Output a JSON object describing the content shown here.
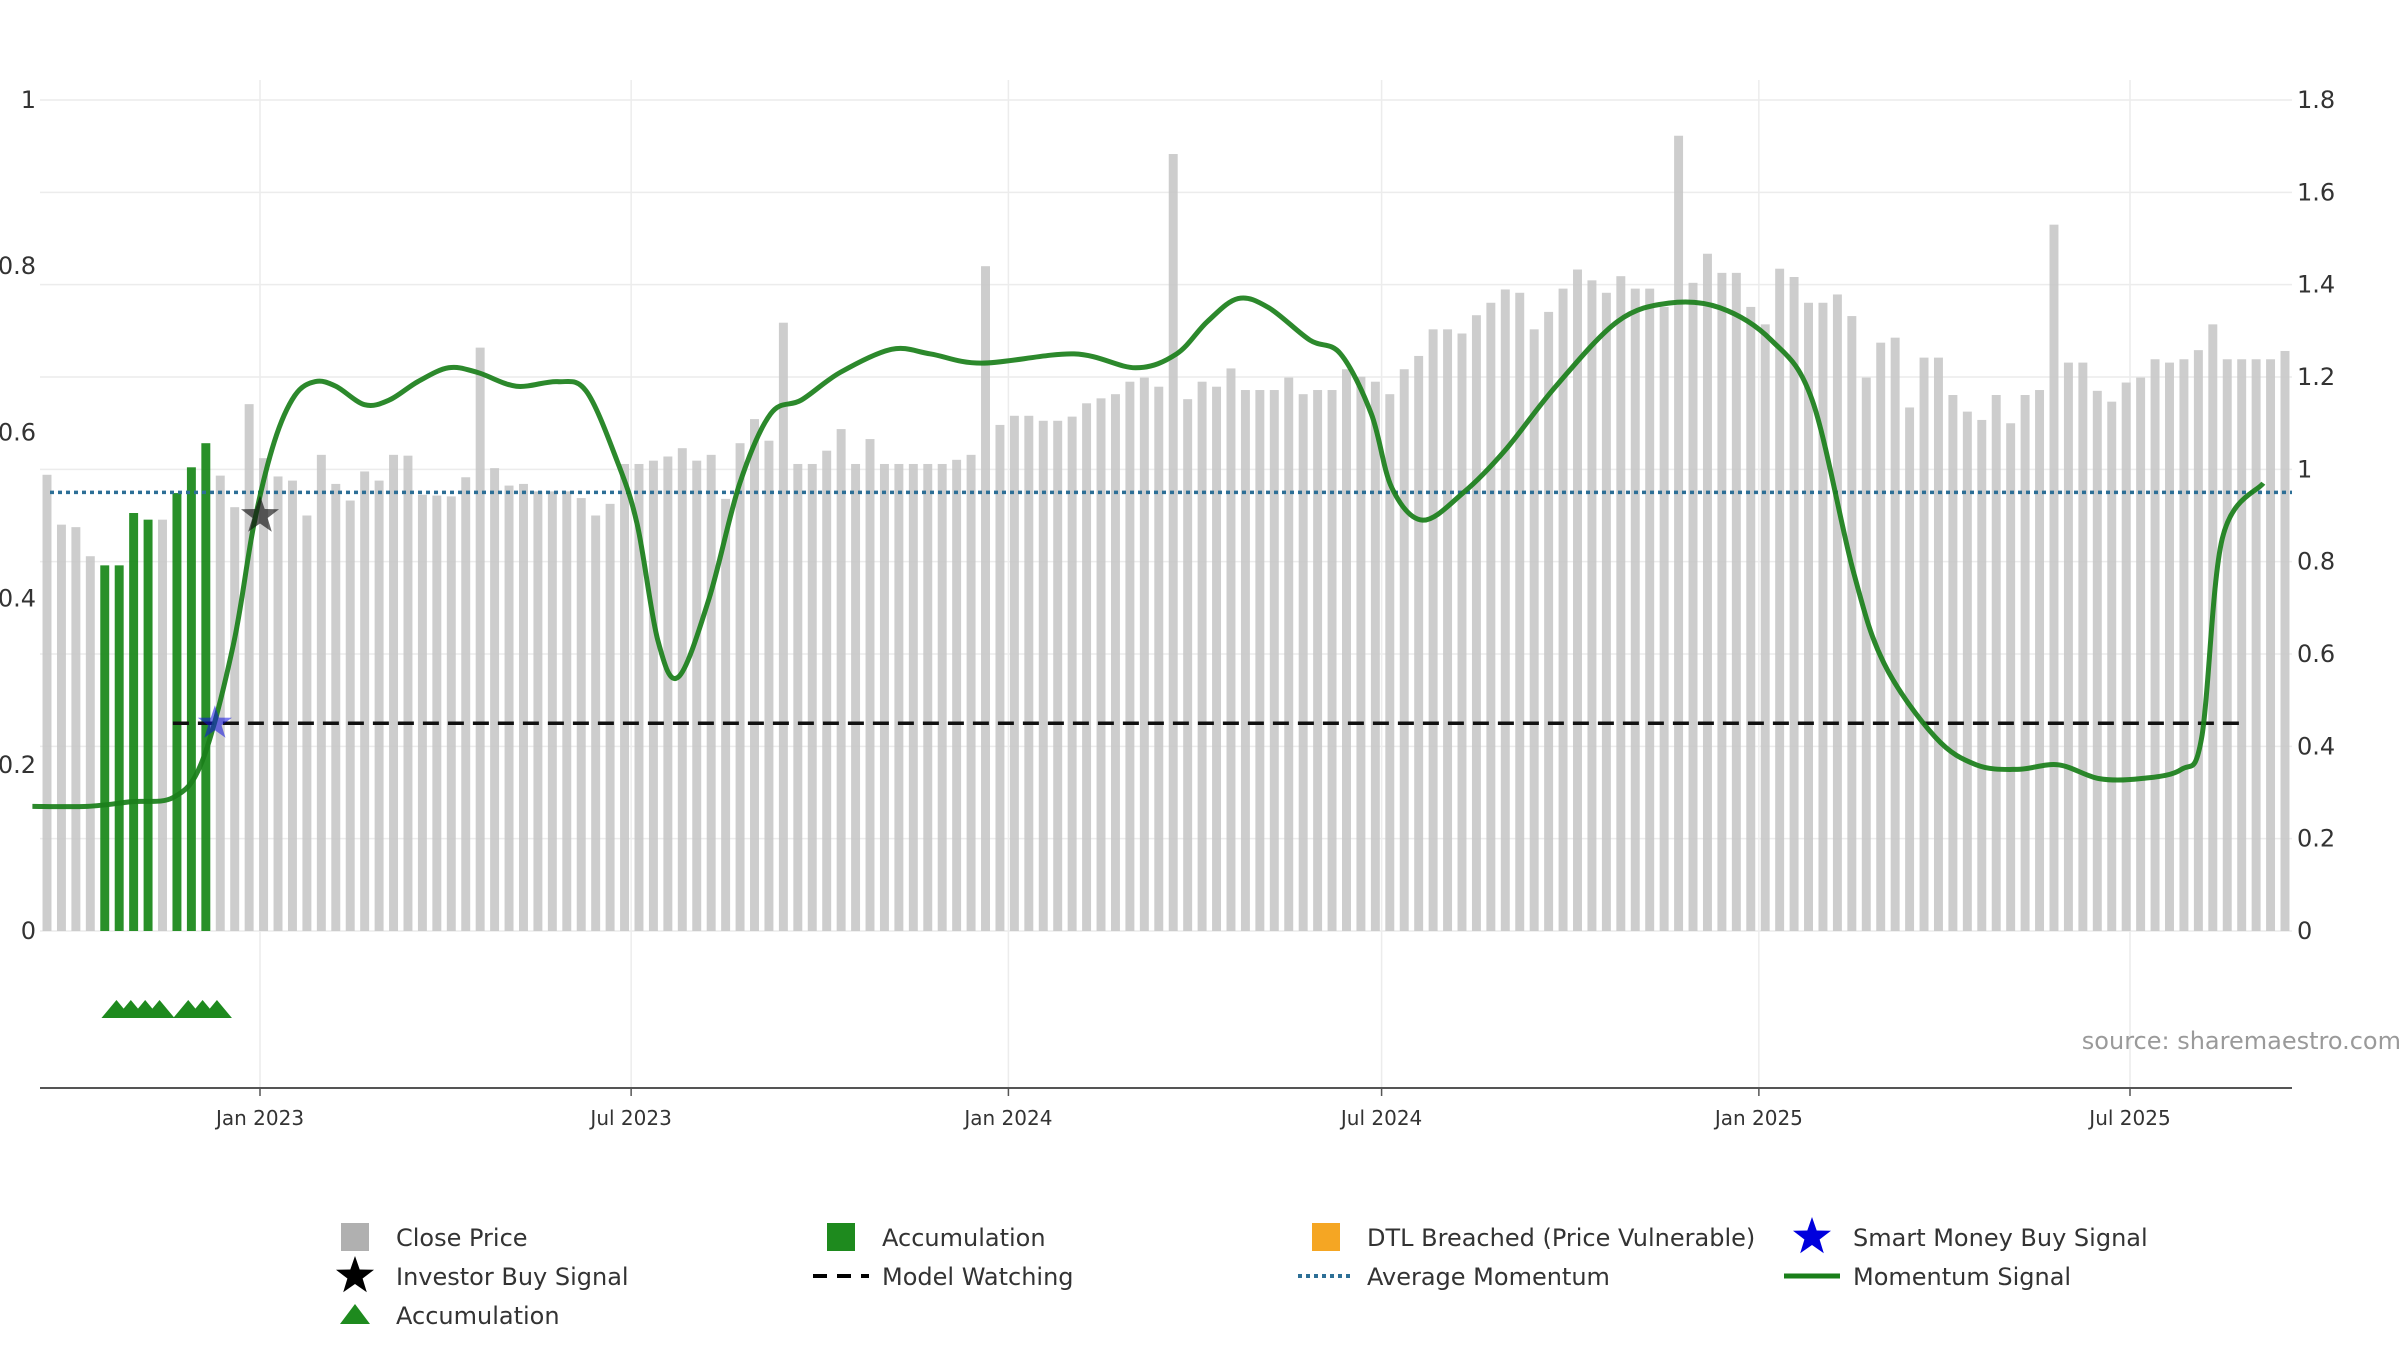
{
  "chart_data": {
    "type": "bar",
    "x_ticks": [
      "Jan 2023",
      "Jul 2023",
      "Jan 2024",
      "Jul 2024",
      "Jan 2025",
      "Jul 2025"
    ],
    "left_axis": {
      "ticks": [
        "0",
        "0.2",
        "0.4",
        "0.6",
        "0.8",
        "1"
      ],
      "ylim": [
        0,
        1
      ]
    },
    "right_axis": {
      "ticks": [
        "0",
        "0.2",
        "0.4",
        "0.6",
        "0.8",
        "1",
        "1.2",
        "1.4",
        "1.6",
        "1.8"
      ],
      "ylim": [
        0,
        1.8
      ]
    },
    "grid": true,
    "legend_position": "bottom",
    "source_label": "source: sharemaestro.com",
    "close_price": [
      0.549,
      0.489,
      0.486,
      0.451,
      0.44,
      0.44,
      0.503,
      0.495,
      0.495,
      0.527,
      0.558,
      0.587,
      0.548,
      0.51,
      0.634,
      0.569,
      0.547,
      0.542,
      0.5,
      0.573,
      0.538,
      0.518,
      0.553,
      0.542,
      0.573,
      0.572,
      0.525,
      0.524,
      0.523,
      0.546,
      0.702,
      0.557,
      0.536,
      0.538,
      0.529,
      0.529,
      0.529,
      0.521,
      0.5,
      0.514,
      0.562,
      0.562,
      0.566,
      0.571,
      0.581,
      0.566,
      0.573,
      0.52,
      0.587,
      0.616,
      0.59,
      0.732,
      0.562,
      0.562,
      0.578,
      0.604,
      0.562,
      0.592,
      0.562,
      0.562,
      0.562,
      0.562,
      0.562,
      0.567,
      0.573,
      0.8,
      0.609,
      0.62,
      0.62,
      0.614,
      0.614,
      0.619,
      0.635,
      0.641,
      0.646,
      0.661,
      0.666,
      0.655,
      0.935,
      0.64,
      0.661,
      0.655,
      0.677,
      0.651,
      0.651,
      0.651,
      0.666,
      0.646,
      0.651,
      0.651,
      0.676,
      0.667,
      0.661,
      0.646,
      0.676,
      0.692,
      0.724,
      0.724,
      0.719,
      0.741,
      0.756,
      0.772,
      0.768,
      0.724,
      0.745,
      0.773,
      0.796,
      0.783,
      0.768,
      0.788,
      0.773,
      0.773,
      0.751,
      0.957,
      0.78,
      0.815,
      0.792,
      0.792,
      0.751,
      0.73,
      0.797,
      0.787,
      0.756,
      0.756,
      0.766,
      0.74,
      0.666,
      0.708,
      0.714,
      0.63,
      0.69,
      0.69,
      0.645,
      0.625,
      0.615,
      0.645,
      0.611,
      0.645,
      0.651,
      0.85,
      0.684,
      0.684,
      0.65,
      0.637,
      0.66,
      0.666,
      0.688,
      0.684,
      0.688,
      0.699,
      0.73,
      0.688,
      0.688,
      0.688,
      0.688,
      0.698
    ],
    "accumulation_bar_indices": [
      4,
      5,
      6,
      7,
      9,
      10,
      11
    ],
    "accumulation_markers_x": [
      "2022-10-23",
      "2022-10-30",
      "2022-11-06",
      "2022-11-13",
      "2022-11-27",
      "2022-12-04",
      "2022-12-11"
    ],
    "model_watching_level": 0.25,
    "average_momentum_level": 0.95,
    "momentum_signal": [
      [
        "2022-09-12",
        0.27
      ],
      [
        "2022-10-09",
        0.27
      ],
      [
        "2022-10-30",
        0.28
      ],
      [
        "2022-11-20",
        0.29
      ],
      [
        "2022-12-04",
        0.37
      ],
      [
        "2022-12-19",
        0.62
      ],
      [
        "2022-12-29",
        0.88
      ],
      [
        "2023-01-08",
        1.06
      ],
      [
        "2023-01-18",
        1.16
      ],
      [
        "2023-01-28",
        1.19
      ],
      [
        "2023-02-07",
        1.18
      ],
      [
        "2023-02-21",
        1.14
      ],
      [
        "2023-03-05",
        1.15
      ],
      [
        "2023-03-19",
        1.19
      ],
      [
        "2023-04-03",
        1.22
      ],
      [
        "2023-04-17",
        1.21
      ],
      [
        "2023-05-06",
        1.18
      ],
      [
        "2023-05-26",
        1.19
      ],
      [
        "2023-06-09",
        1.17
      ],
      [
        "2023-06-24",
        1.02
      ],
      [
        "2023-07-04",
        0.88
      ],
      [
        "2023-07-14",
        0.63
      ],
      [
        "2023-07-24",
        0.55
      ],
      [
        "2023-08-08",
        0.72
      ],
      [
        "2023-08-23",
        0.97
      ],
      [
        "2023-09-07",
        1.12
      ],
      [
        "2023-09-22",
        1.15
      ],
      [
        "2023-10-11",
        1.21
      ],
      [
        "2023-11-05",
        1.26
      ],
      [
        "2023-11-24",
        1.25
      ],
      [
        "2023-12-19",
        1.23
      ],
      [
        "2024-02-02",
        1.25
      ],
      [
        "2024-03-03",
        1.22
      ],
      [
        "2024-03-23",
        1.25
      ],
      [
        "2024-04-07",
        1.32
      ],
      [
        "2024-04-22",
        1.37
      ],
      [
        "2024-05-07",
        1.35
      ],
      [
        "2024-05-27",
        1.28
      ],
      [
        "2024-06-11",
        1.25
      ],
      [
        "2024-06-26",
        1.12
      ],
      [
        "2024-07-06",
        0.96
      ],
      [
        "2024-07-21",
        0.89
      ],
      [
        "2024-08-10",
        0.95
      ],
      [
        "2024-08-30",
        1.04
      ],
      [
        "2024-09-24",
        1.18
      ],
      [
        "2024-10-24",
        1.32
      ],
      [
        "2024-11-18",
        1.36
      ],
      [
        "2024-12-13",
        1.35
      ],
      [
        "2025-01-07",
        1.28
      ],
      [
        "2025-01-27",
        1.15
      ],
      [
        "2025-02-16",
        0.78
      ],
      [
        "2025-03-03",
        0.58
      ],
      [
        "2025-03-28",
        0.42
      ],
      [
        "2025-04-17",
        0.36
      ],
      [
        "2025-05-07",
        0.35
      ],
      [
        "2025-05-27",
        0.36
      ],
      [
        "2025-06-16",
        0.33
      ],
      [
        "2025-07-06",
        0.33
      ],
      [
        "2025-07-26",
        0.35
      ],
      [
        "2025-08-05",
        0.42
      ],
      [
        "2025-08-15",
        0.85
      ],
      [
        "2025-09-04",
        0.97
      ]
    ],
    "investor_buy_signal": {
      "x": "2023-01-01",
      "y": 0.5
    },
    "smart_money_buy_signal": {
      "x": "2022-12-10",
      "y": 0.25
    },
    "colors": {
      "close_price": "#c8c8c8",
      "accumulation": "#1e8a1e",
      "dtl_breached": "#f5a623",
      "momentum": "#1a7f1a",
      "average_momentum": "#2d6f96",
      "model_watching": "#111111",
      "investor_buy_signal": "#111111",
      "smart_money_buy_signal": "#1010e0"
    },
    "legend": [
      {
        "label": "Close Price",
        "marker": "gray-square"
      },
      {
        "label": "Accumulation",
        "marker": "green-square"
      },
      {
        "label": "DTL Breached (Price Vulnerable)",
        "marker": "orange-square"
      },
      {
        "label": "Smart Money Buy Signal",
        "marker": "blue-star"
      },
      {
        "label": "Investor Buy Signal",
        "marker": "black-star"
      },
      {
        "label": "Model Watching",
        "marker": "black-dashed-line"
      },
      {
        "label": "Average Momentum",
        "marker": "blue-dotted-line"
      },
      {
        "label": "Momentum Signal",
        "marker": "green-line"
      },
      {
        "label": "Accumulation",
        "marker": "green-triangle"
      }
    ]
  }
}
